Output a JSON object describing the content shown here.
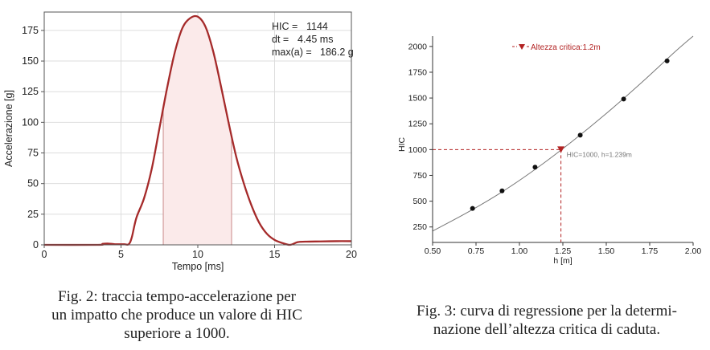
{
  "chart_data": [
    {
      "type": "line",
      "xlabel": "Tempo [ms]",
      "ylabel": "Accelerazione [g]",
      "xlim": [
        0,
        20
      ],
      "ylim": [
        0,
        190
      ],
      "x_ticks": [
        "0",
        "5",
        "10",
        "15",
        "20"
      ],
      "y_ticks": [
        "0",
        "25",
        "50",
        "75",
        "100",
        "125",
        "150",
        "175"
      ],
      "grid": true,
      "color": "#a52a2a",
      "annotation": {
        "hic_label": "HIC =",
        "hic_value": "1144",
        "dt_label": "dt =",
        "dt_value": "4.45 ms",
        "max_label": "max(a) =",
        "max_value": "186.2 g"
      },
      "hic_window": [
        7.75,
        12.2
      ],
      "series": [
        {
          "x": [
            0,
            3.5,
            3.8,
            4.2,
            4.6,
            5.2,
            5.5,
            5.7,
            6.0,
            6.5,
            7.0,
            7.5,
            8.0,
            8.5,
            9.0,
            9.5,
            10.0,
            10.5,
            11.0,
            11.5,
            12.0,
            12.5,
            13.0,
            13.5,
            14.0,
            14.5,
            15.0,
            15.5,
            16.0,
            16.5,
            17.0,
            18.0,
            19.0,
            20.0
          ],
          "y": [
            0,
            0,
            0.8,
            1,
            0.5,
            0.5,
            0.5,
            6,
            22,
            38,
            62,
            95,
            128,
            157,
            177,
            185,
            186.2,
            178,
            158,
            130,
            100,
            72,
            50,
            32,
            18,
            9,
            4,
            1.5,
            0,
            2.2,
            2.6,
            2.8,
            3.0,
            3.0
          ]
        }
      ]
    },
    {
      "type": "scatter",
      "xlabel": "h [m]",
      "ylabel": "HIC",
      "xlim": [
        0.5,
        2.0
      ],
      "ylim": [
        100,
        2100
      ],
      "x_ticks": [
        "0.50",
        "0.75",
        "1.00",
        "1.25",
        "1.50",
        "1.75",
        "2.00"
      ],
      "y_ticks": [
        "250",
        "500",
        "750",
        "1000",
        "1250",
        "1500",
        "1750",
        "2000"
      ],
      "grid": false,
      "legend": "Altezza critica:1.2m",
      "legend_position": "top-left",
      "critical_label": "HIC=1000, h=1.239m",
      "critical_point": {
        "x": 1.239,
        "y": 1000
      },
      "accent": "#b22222",
      "points": {
        "x": [
          0.73,
          0.9,
          1.09,
          1.35,
          1.6,
          1.85
        ],
        "y": [
          430,
          600,
          830,
          1140,
          1490,
          1860
        ]
      },
      "fit": {
        "x": [
          0.5,
          0.7,
          0.9,
          1.1,
          1.3,
          1.5,
          1.7,
          1.9,
          2.0
        ],
        "y": [
          210,
          390,
          590,
          820,
          1075,
          1350,
          1645,
          1955,
          2115
        ]
      }
    }
  ],
  "captions": {
    "fig2": [
      "Fig. 2: traccia tempo-accelerazione per",
      "un impatto che produce un valore di HIC",
      "superiore a 1000."
    ],
    "fig3": [
      "Fig. 3: curva di regressione per la determi-",
      "nazione dell’altezza critica di caduta."
    ]
  }
}
